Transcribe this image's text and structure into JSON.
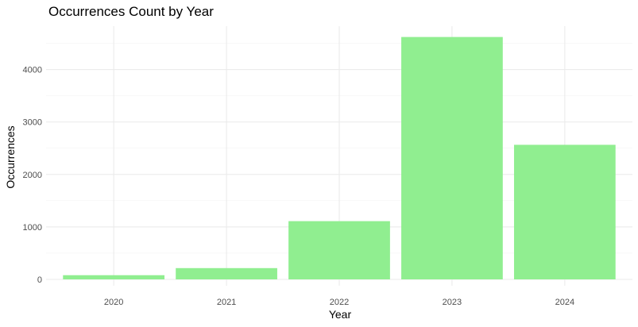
{
  "chart_data": {
    "type": "bar",
    "title": "Occurrences Count by Year",
    "xlabel": "Year",
    "ylabel": "Occurrences",
    "categories": [
      "2020",
      "2021",
      "2022",
      "2023",
      "2024"
    ],
    "values": [
      80,
      215,
      1110,
      4620,
      2565
    ],
    "ylim": [
      0,
      4850
    ],
    "yticks": [
      0,
      1000,
      2000,
      3000,
      4000
    ],
    "bar_color": "#90ee90",
    "grid": true,
    "legend": "none"
  }
}
